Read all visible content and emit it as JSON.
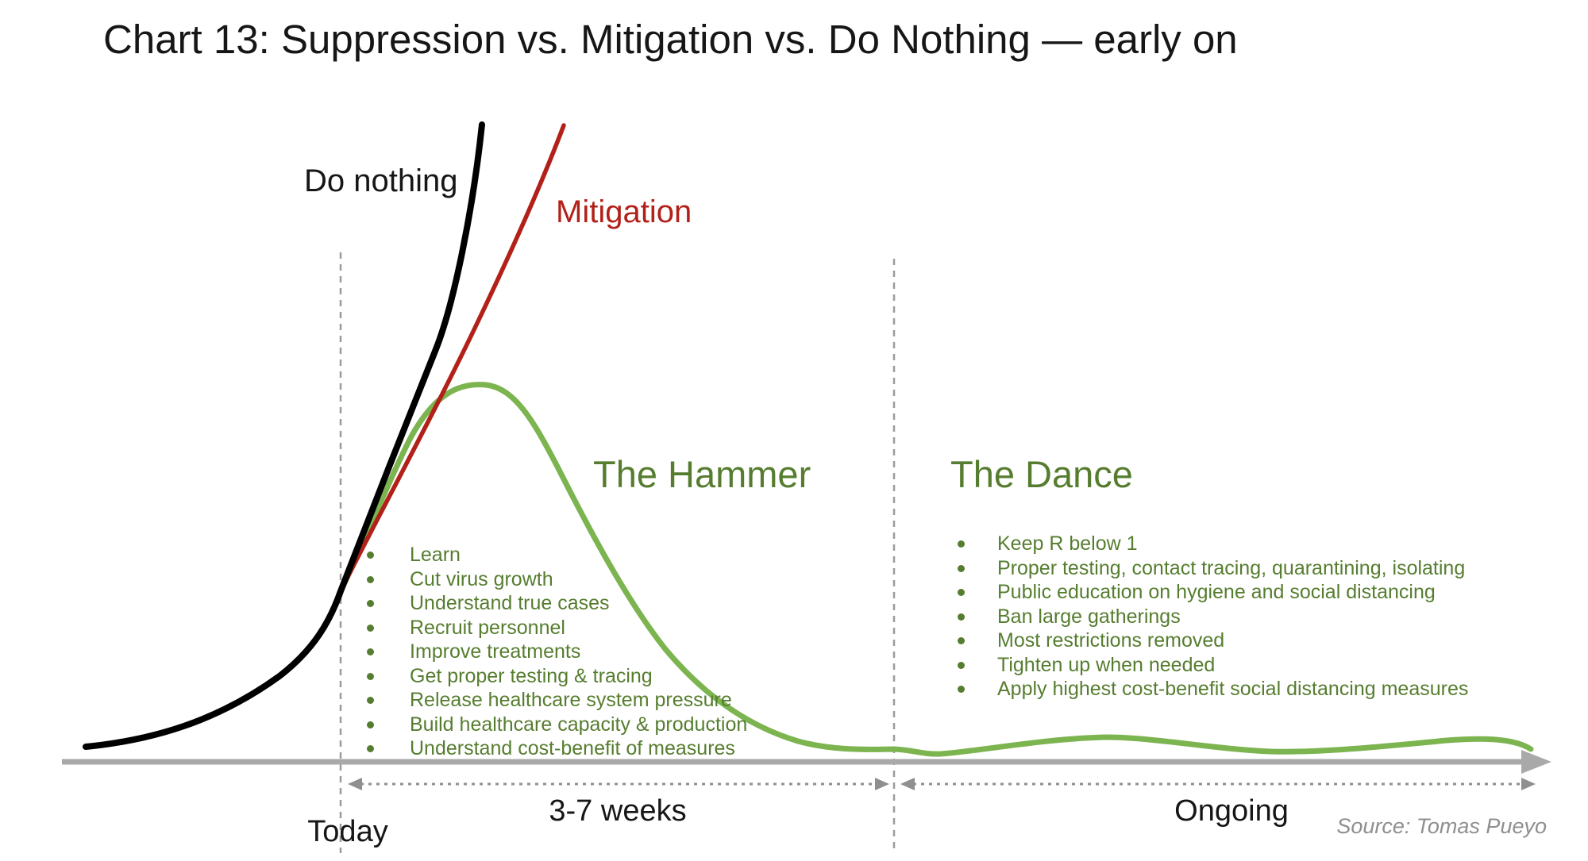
{
  "title": "Chart 13: Suppression vs. Mitigation vs. Do Nothing — early on",
  "source": "Source: Tomas Pueyo",
  "colors": {
    "do_nothing_curve": "#000000",
    "mitigation_curve": "#b22119",
    "suppression_curve": "#7cb450",
    "green_text": "#567d2f",
    "red_text": "#b22119",
    "axis_gray": "#a9a9a9",
    "dashed_gray": "#9b9b9b",
    "arrowhead_gray": "#8f8f8f",
    "source_gray": "#8f8f8f",
    "title_black": "#161616"
  },
  "curve_labels": {
    "do_nothing": "Do nothing",
    "mitigation": "Mitigation"
  },
  "phases": {
    "hammer": {
      "title": "The Hammer",
      "bullets": [
        "Learn",
        "Cut virus growth",
        "Understand true cases",
        "Recruit personnel",
        "Improve treatments",
        "Get proper testing & tracing",
        "Release healthcare system pressure",
        "Build healthcare capacity & production",
        "Understand cost-benefit of measures"
      ]
    },
    "dance": {
      "title": "The Dance",
      "bullets": [
        "Keep R below 1",
        "Proper testing, contact tracing, quarantining, isolating",
        "Public education on hygiene and social distancing",
        "Ban large gatherings",
        "Most restrictions removed",
        "Tighten up when needed",
        "Apply highest cost-benefit social distancing measures"
      ]
    }
  },
  "timeline": {
    "today": "Today",
    "hammer_duration": "3-7 weeks",
    "dance_duration": "Ongoing"
  },
  "chart_data": {
    "type": "line",
    "title": "Chart 13: Suppression vs. Mitigation vs. Do Nothing — early on",
    "xlabel": "",
    "ylabel": "",
    "axes_unlabeled": true,
    "note": "Conceptual chart; no numeric axes shown. x = time as % of axis length, y = relative epidemic size 0-100 estimated from curve heights.",
    "series": [
      {
        "name": "Do nothing",
        "color": "#000000",
        "points": [
          [
            1.6,
            2.5
          ],
          [
            9.2,
            5.0
          ],
          [
            14.6,
            13.4
          ],
          [
            18.8,
            26.8
          ],
          [
            22.5,
            49.2
          ],
          [
            25.2,
            64.8
          ],
          [
            26.8,
            82.2
          ],
          [
            28.3,
            100.0
          ]
        ]
      },
      {
        "name": "Mitigation",
        "color": "#b22119",
        "points": [
          [
            18.8,
            26.8
          ],
          [
            22.5,
            46.1
          ],
          [
            28.0,
            69.4
          ],
          [
            31.1,
            84.7
          ],
          [
            33.8,
            99.9
          ]
        ]
      },
      {
        "name": "Suppression (Hammer + Dance)",
        "color": "#7cb450",
        "points": [
          [
            18.8,
            26.8
          ],
          [
            23.5,
            51.1
          ],
          [
            28.5,
            59.2
          ],
          [
            33.4,
            46.1
          ],
          [
            40.6,
            17.7
          ],
          [
            49.5,
            3.2
          ],
          [
            56.0,
            2.0
          ],
          [
            70.4,
            3.9
          ],
          [
            81.3,
            1.6
          ],
          [
            94.7,
            3.7
          ],
          [
            98.8,
            2.0
          ]
        ]
      }
    ],
    "annotations": [
      {
        "text": "Today",
        "x_pct": 18.8
      },
      {
        "text": "3-7 weeks",
        "span_pct": [
          18.8,
          56.0
        ]
      },
      {
        "text": "Ongoing",
        "span_pct": [
          56.0,
          99.0
        ]
      },
      {
        "text": "The Hammer",
        "region": "between Today line and 3-7 weeks end"
      },
      {
        "text": "The Dance",
        "region": "after 3-7 weeks line"
      }
    ],
    "legend_position": "labels on curves"
  }
}
